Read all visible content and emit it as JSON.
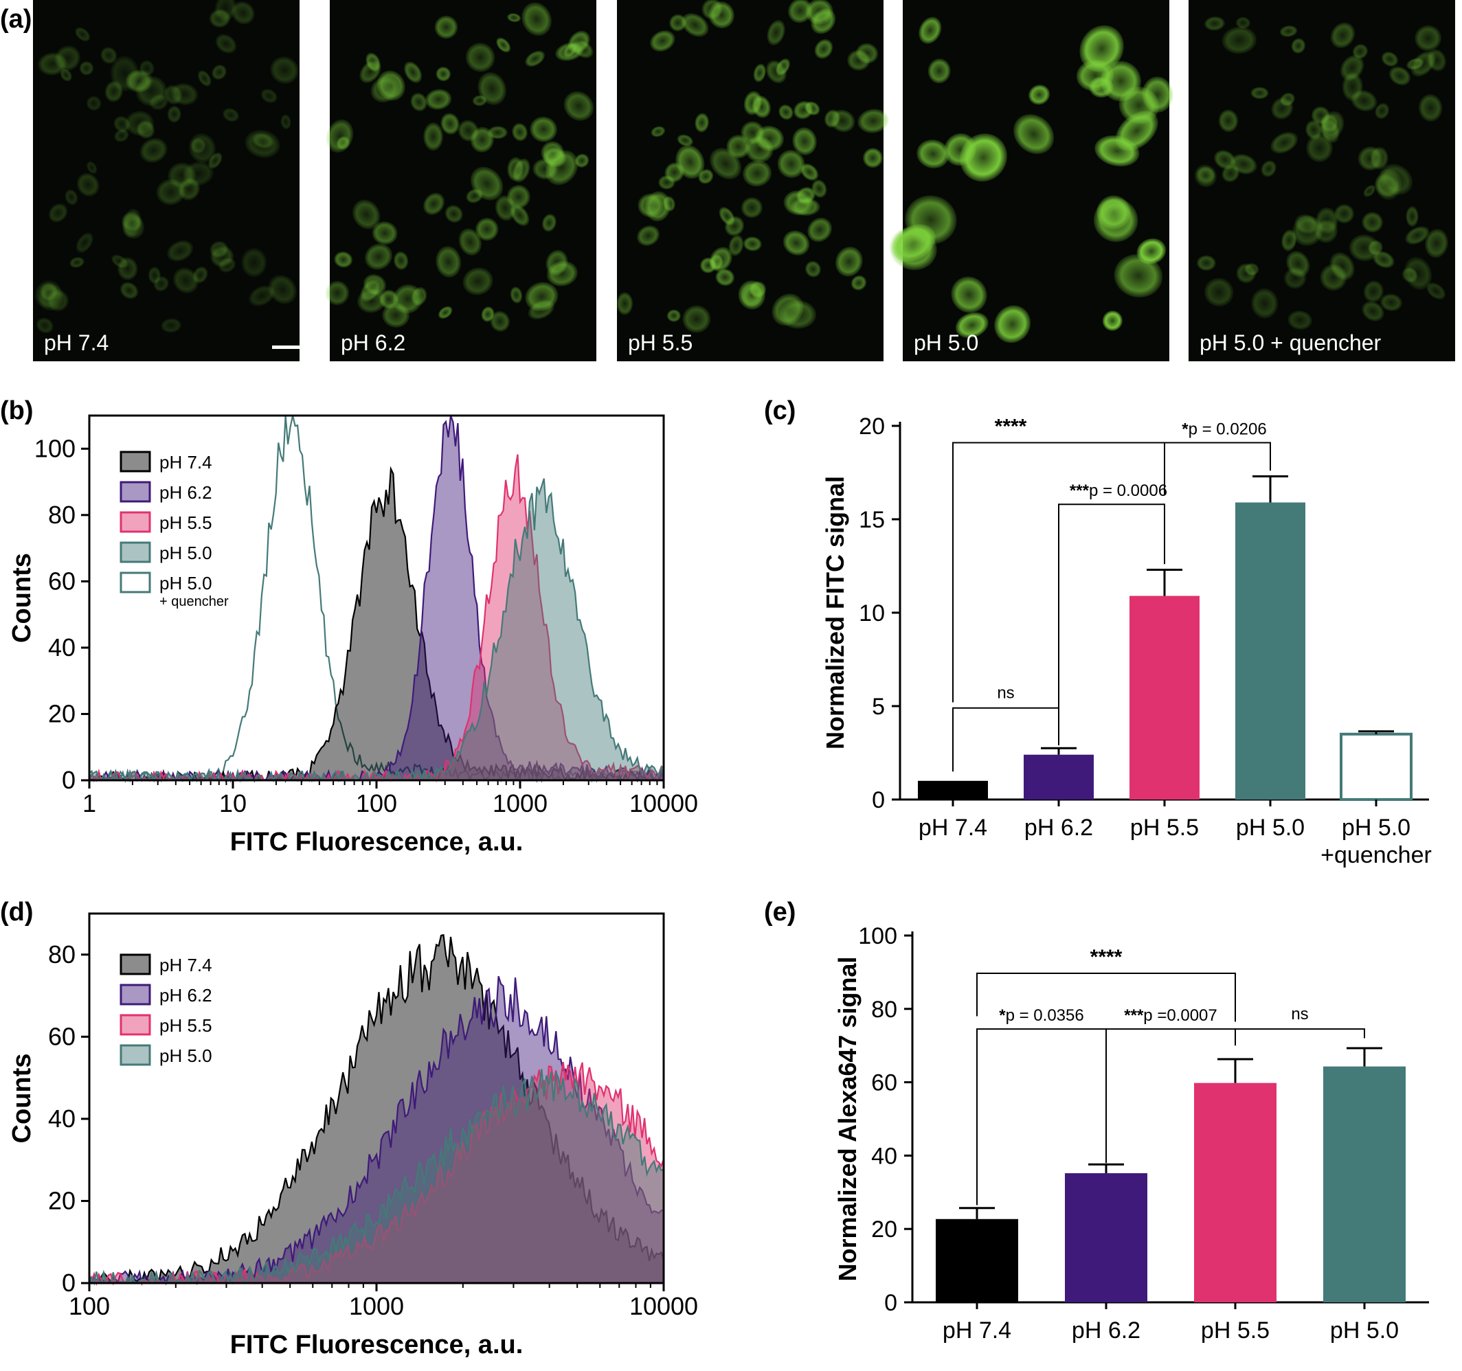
{
  "colors": {
    "ph74": "#000000",
    "ph62": "#3f1a7a",
    "ph55": "#e0326f",
    "ph50": "#447a78",
    "quencher_edge": "#447a78",
    "micro_green": "#7ed23c"
  },
  "panel_a": {
    "label": "(a)",
    "images": [
      {
        "caption": "pH 7.4",
        "brightness": 0.28
      },
      {
        "caption": "pH 6.2",
        "brightness": 0.55
      },
      {
        "caption": "pH 5.5",
        "brightness": 0.62
      },
      {
        "caption": "pH 5.0",
        "brightness": 0.95
      },
      {
        "caption": "pH 5.0 + quencher",
        "brightness": 0.38
      }
    ]
  },
  "panel_b": {
    "label": "(b)",
    "legend": [
      {
        "key": "ph74",
        "text": "pH 7.4",
        "sub": ""
      },
      {
        "key": "ph62",
        "text": "pH 6.2",
        "sub": ""
      },
      {
        "key": "ph55",
        "text": "pH 5.5",
        "sub": ""
      },
      {
        "key": "ph50",
        "text": "pH 5.0",
        "sub": ""
      },
      {
        "key": "quencher",
        "text": "pH 5.0",
        "sub": "+ quencher"
      }
    ]
  },
  "panel_c": {
    "label": "(c)",
    "annotations": {
      "sig1": "****",
      "sig2_star": "*",
      "sig2_text": "p = 0.0206",
      "sig3_star": "***",
      "sig3_text": "p = 0.0006",
      "sig4": "ns"
    }
  },
  "panel_d": {
    "label": "(d)",
    "legend": [
      {
        "key": "ph74",
        "text": "pH 7.4"
      },
      {
        "key": "ph62",
        "text": "pH 6.2"
      },
      {
        "key": "ph55",
        "text": "pH 5.5"
      },
      {
        "key": "ph50",
        "text": "pH 5.0"
      }
    ]
  },
  "panel_e": {
    "label": "(e)",
    "annotations": {
      "sig1": "****",
      "sig2_star": "*",
      "sig2_text": "p = 0.0356",
      "sig3_star": "***",
      "sig3_text": "p =0.0007",
      "sig4": "ns"
    }
  },
  "chart_data": [
    {
      "id": "b",
      "type": "area",
      "xlabel": "FITC Fluorescence, a.u.",
      "ylabel": "Counts",
      "xscale": "log",
      "xlim": [
        1,
        10000
      ],
      "ylim": [
        0,
        110
      ],
      "xticks": [
        1,
        10,
        100,
        1000,
        10000
      ],
      "xtick_labels": [
        "1",
        "10",
        "100",
        "1000",
        "10000"
      ],
      "yticks": [
        0,
        20,
        40,
        60,
        80,
        100
      ],
      "legend_position": "top-left",
      "series": [
        {
          "name": "pH 5.0 + quencher",
          "key": "quencher",
          "peak_x": 25,
          "peak_y": 105,
          "width_log": 0.17
        },
        {
          "name": "pH 7.4",
          "key": "ph74",
          "peak_x": 115,
          "peak_y": 84,
          "width_log": 0.2
        },
        {
          "name": "pH 6.2",
          "key": "ph62",
          "peak_x": 320,
          "peak_y": 104,
          "width_log": 0.15
        },
        {
          "name": "pH 5.5",
          "key": "ph55",
          "peak_x": 900,
          "peak_y": 88,
          "width_log": 0.18
        },
        {
          "name": "pH 5.0",
          "key": "ph50",
          "peak_x": 1350,
          "peak_y": 82,
          "width_log": 0.25
        }
      ]
    },
    {
      "id": "c",
      "type": "bar",
      "ylabel": "Normalized FITC signal",
      "ylim": [
        0,
        20
      ],
      "yticks": [
        0,
        5,
        10,
        15,
        20
      ],
      "categories": [
        "pH 7.4",
        "pH 6.2",
        "pH 5.5",
        "pH 5.0",
        "pH 5.0\n+quencher"
      ],
      "values": [
        1.0,
        2.4,
        10.9,
        15.9,
        3.5
      ],
      "errors": [
        0,
        0.35,
        1.4,
        1.4,
        0.15
      ],
      "keys": [
        "ph74",
        "ph62",
        "ph55",
        "ph50",
        "quencher"
      ]
    },
    {
      "id": "d",
      "type": "area",
      "xlabel": "FITC Fluorescence, a.u.",
      "ylabel": "Counts",
      "xscale": "log",
      "xlim": [
        100,
        10000
      ],
      "ylim": [
        0,
        90
      ],
      "xticks": [
        100,
        1000,
        10000
      ],
      "xtick_labels": [
        "100",
        "1000",
        "10000"
      ],
      "yticks": [
        0,
        20,
        40,
        60,
        80
      ],
      "legend_position": "top-left",
      "series": [
        {
          "name": "pH 7.4",
          "key": "ph74",
          "peak_x": 1550,
          "peak_y": 76,
          "width_log": 0.32
        },
        {
          "name": "pH 6.2",
          "key": "ph62",
          "peak_x": 2600,
          "peak_y": 66,
          "width_log": 0.33
        },
        {
          "name": "pH 5.5",
          "key": "ph55",
          "peak_x": 4300,
          "peak_y": 48,
          "width_log": 0.36
        },
        {
          "name": "pH 5.0",
          "key": "ph50",
          "peak_x": 3600,
          "peak_y": 45,
          "width_log": 0.38
        }
      ]
    },
    {
      "id": "e",
      "type": "bar",
      "ylabel": "Normalized Alexa647 signal",
      "ylim": [
        0,
        100
      ],
      "yticks": [
        0,
        20,
        40,
        60,
        80,
        100
      ],
      "categories": [
        "pH 7.4",
        "pH 6.2",
        "pH 5.5",
        "pH 5.0"
      ],
      "values": [
        22.7,
        35.2,
        59.8,
        64.3
      ],
      "errors": [
        3.0,
        2.4,
        6.5,
        5.0
      ],
      "keys": [
        "ph74",
        "ph62",
        "ph55",
        "ph50"
      ]
    }
  ]
}
